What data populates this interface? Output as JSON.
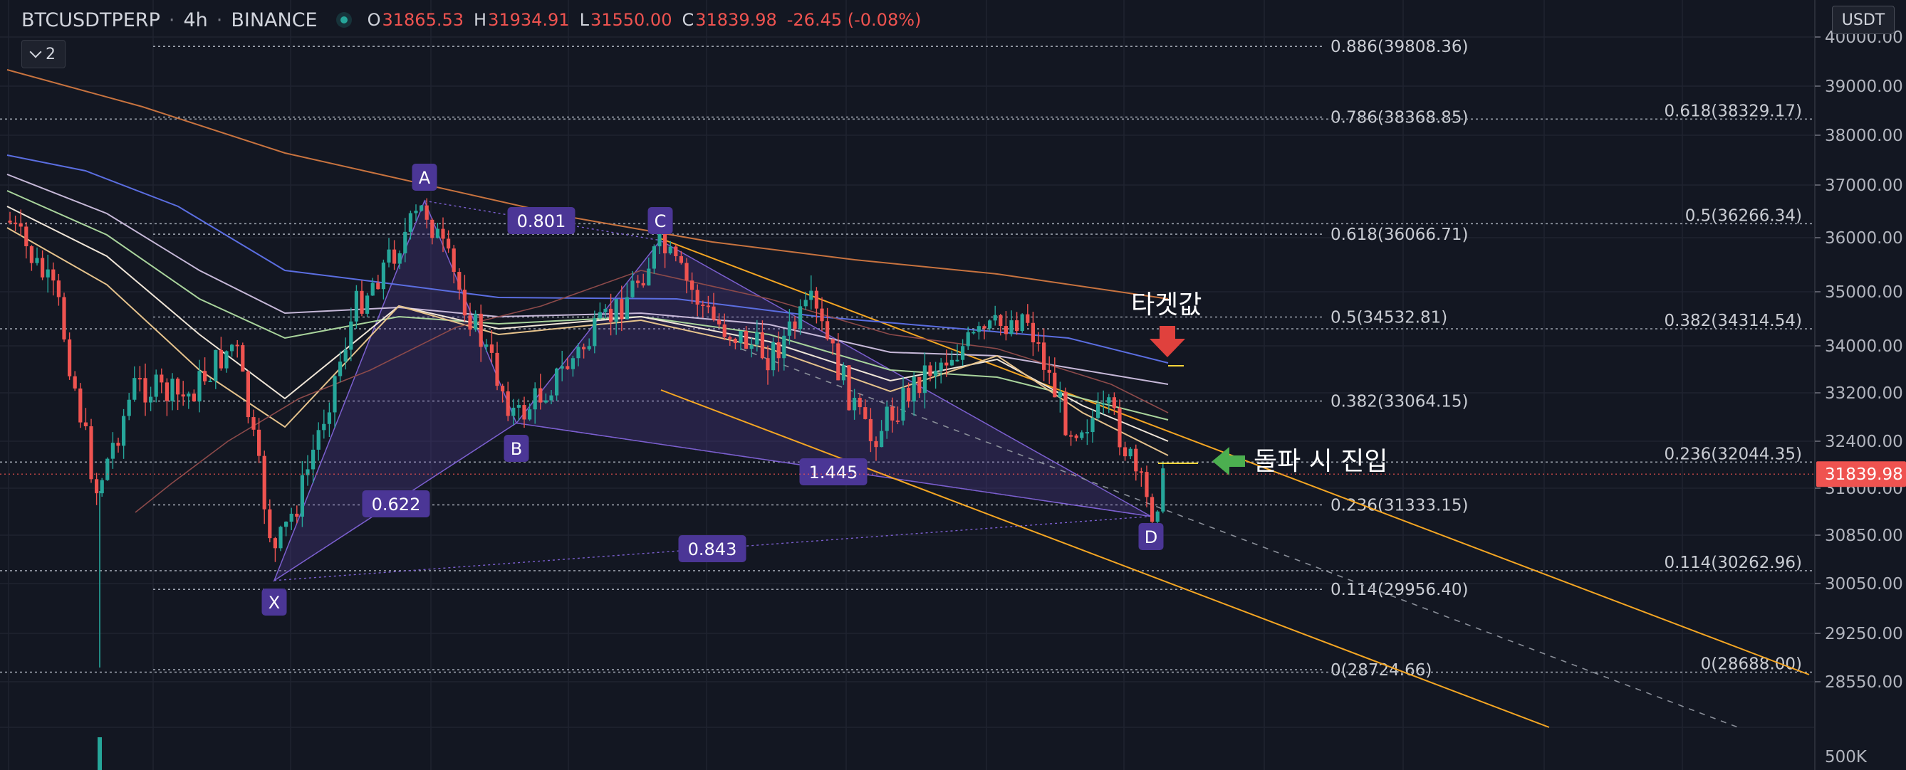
{
  "header": {
    "symbol": "BTCUSDTPERP",
    "interval": "4h",
    "exchange": "BINANCE",
    "open_label": "O",
    "open": "31865.53",
    "high_label": "H",
    "high": "31934.91",
    "low_label": "L",
    "low": "31550.00",
    "close_label": "C",
    "close": "31839.98",
    "change": "-26.45 (-0.08%)",
    "collapse_label": "2",
    "currency_button": "USDT"
  },
  "colors": {
    "background": "#131722",
    "bull": "#26a69a",
    "bear": "#ef5350",
    "pattern_fill": "#5b3fa0",
    "pattern_label_bg": "#4b3696",
    "channel": "#f5a623",
    "ma_slow": "#c8733f",
    "ma_blue": "#5b6ee1",
    "target_arrow": "#e0413d",
    "entry_arrow": "#4caf50"
  },
  "chart_data": {
    "type": "candlestick",
    "price_axis": {
      "ticks": [
        "40000.00",
        "39000.00",
        "38000.00",
        "37000.00",
        "36000.00",
        "35000.00",
        "34000.00",
        "33200.00",
        "32400.00",
        "31600.00",
        "30850.00",
        "30050.00",
        "29250.00",
        "28550.00"
      ],
      "tick_values": [
        40000,
        39000,
        38000,
        37000,
        36000,
        35000,
        34000,
        33200,
        32400,
        31600,
        30850,
        30050,
        29250,
        28550
      ],
      "last_price": "31839.98",
      "last_price_value": 31839.98,
      "volume_tick": "500K"
    },
    "harmonic_pattern": {
      "points": [
        {
          "label": "X",
          "price": 30100
        },
        {
          "label": "A",
          "price": 36700
        },
        {
          "label": "B",
          "price": 32700
        },
        {
          "label": "C",
          "price": 35950
        },
        {
          "label": "D",
          "price": 31150
        }
      ],
      "ratios": [
        {
          "label": "0.801"
        },
        {
          "label": "0.622"
        },
        {
          "label": "1.445"
        },
        {
          "label": "0.843"
        }
      ]
    },
    "fib_left": [
      {
        "label": "0.886(39808.36)",
        "price": 39808.36
      },
      {
        "label": "0.786(38368.85)",
        "price": 38368.85
      },
      {
        "label": "0.618(36066.71)",
        "price": 36066.71
      },
      {
        "label": "0.5(34532.81)",
        "price": 34532.81
      },
      {
        "label": "0.382(33064.15)",
        "price": 33064.15
      },
      {
        "label": "0.236(31333.15)",
        "price": 31333.15
      },
      {
        "label": "0.114(29956.40)",
        "price": 29956.4
      },
      {
        "label": "0(28724.66)",
        "price": 28724.66
      }
    ],
    "fib_right": [
      {
        "label": "0.618(38329.17)",
        "price": 38329.17
      },
      {
        "label": "0.5(36266.34)",
        "price": 36266.34
      },
      {
        "label": "0.382(34314.54)",
        "price": 34314.54
      },
      {
        "label": "0.236(32044.35)",
        "price": 32044.35
      },
      {
        "label": "0.114(30262.96)",
        "price": 30262.96
      },
      {
        "label": "0(28688.00)",
        "price": 28688.0
      }
    ],
    "annotations": [
      {
        "name": "target",
        "text": "타겟값"
      },
      {
        "name": "entry",
        "text": "돌파 시 진입"
      }
    ]
  }
}
